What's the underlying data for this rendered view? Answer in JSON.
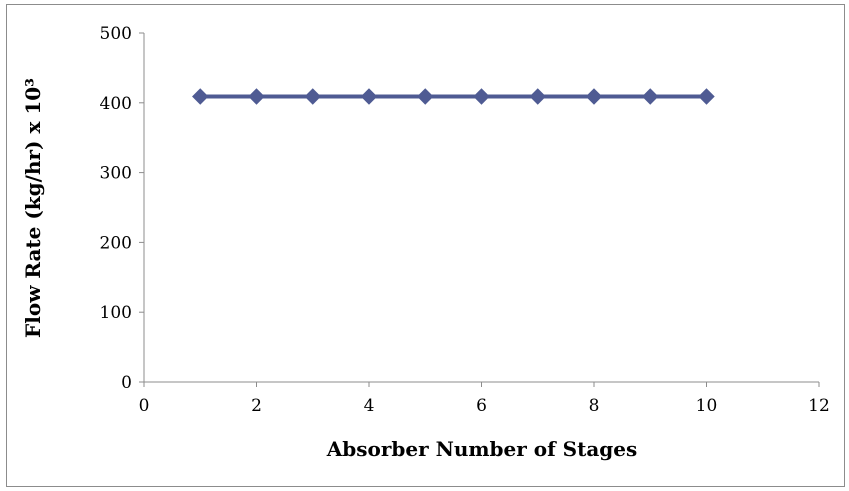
{
  "chart_data": {
    "type": "line",
    "xlabel": "Absorber Number of Stages",
    "ylabel": "Flow Rate (kg/hr) x 10³",
    "xlim": [
      0,
      12
    ],
    "ylim": [
      0,
      500
    ],
    "xticks": [
      0,
      2,
      4,
      6,
      8,
      10,
      12
    ],
    "yticks": [
      0,
      100,
      200,
      300,
      400,
      500
    ],
    "grid": false,
    "legend": "none",
    "series": [
      {
        "x": [
          1,
          2,
          3,
          4,
          5,
          6,
          7,
          8,
          9,
          10
        ],
        "y": [
          409,
          409,
          409,
          409,
          409,
          409,
          409,
          409,
          409,
          409
        ],
        "color": "#4f5b93",
        "marker": "diamond"
      }
    ]
  }
}
